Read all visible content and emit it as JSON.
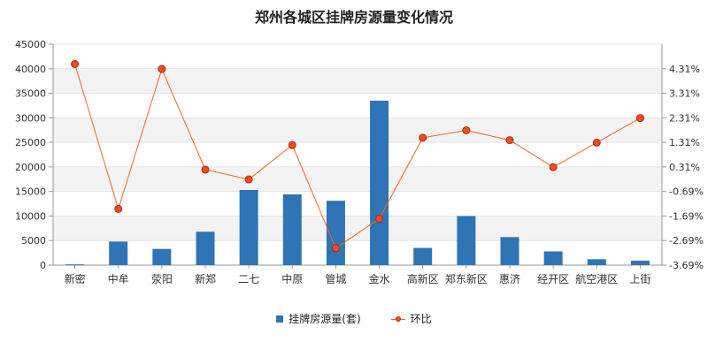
{
  "chart_data": {
    "type": "bar",
    "title": "郑州各城区挂牌房源量变化情况",
    "categories": [
      "新密",
      "中牟",
      "荥阳",
      "新郑",
      "二七",
      "中原",
      "管城",
      "金水",
      "高新区",
      "郑东新区",
      "惠济",
      "经开区",
      "航空港区",
      "上街"
    ],
    "series": [
      {
        "name": "挂牌房源量(套)",
        "type": "bar",
        "axis": "left",
        "values": [
          150,
          4800,
          3300,
          6800,
          15300,
          14400,
          13100,
          33500,
          3500,
          10000,
          5700,
          2800,
          1200,
          900
        ]
      },
      {
        "name": "环比",
        "type": "line",
        "axis": "right",
        "values": [
          4.5,
          -1.4,
          4.3,
          0.2,
          -0.2,
          1.2,
          -3.0,
          -1.8,
          1.5,
          1.8,
          1.4,
          0.3,
          1.3,
          2.3
        ]
      }
    ],
    "y_left": {
      "min": 0,
      "max": 45000,
      "ticks": [
        0,
        5000,
        10000,
        15000,
        20000,
        25000,
        30000,
        35000,
        40000,
        45000
      ]
    },
    "y_right": {
      "min": -3.69,
      "max": 5.31,
      "tick_values": [
        -3.69,
        -2.69,
        -1.69,
        -0.69,
        0.31,
        1.31,
        2.31,
        3.31,
        4.31
      ],
      "tick_labels": [
        "-3.69%",
        "-2.69%",
        "-1.69%",
        "-0.69%",
        "0.31%",
        "1.31%",
        "2.31%",
        "3.31%",
        "4.31%"
      ]
    },
    "grid": true,
    "legend_position": "bottom",
    "colors": {
      "bar": "#2f74b5",
      "line": "#f26522",
      "marker_fill": "#f04b23",
      "marker_stroke": "#b12b00",
      "band": "#f3f3f3",
      "axis": "#999999"
    }
  }
}
